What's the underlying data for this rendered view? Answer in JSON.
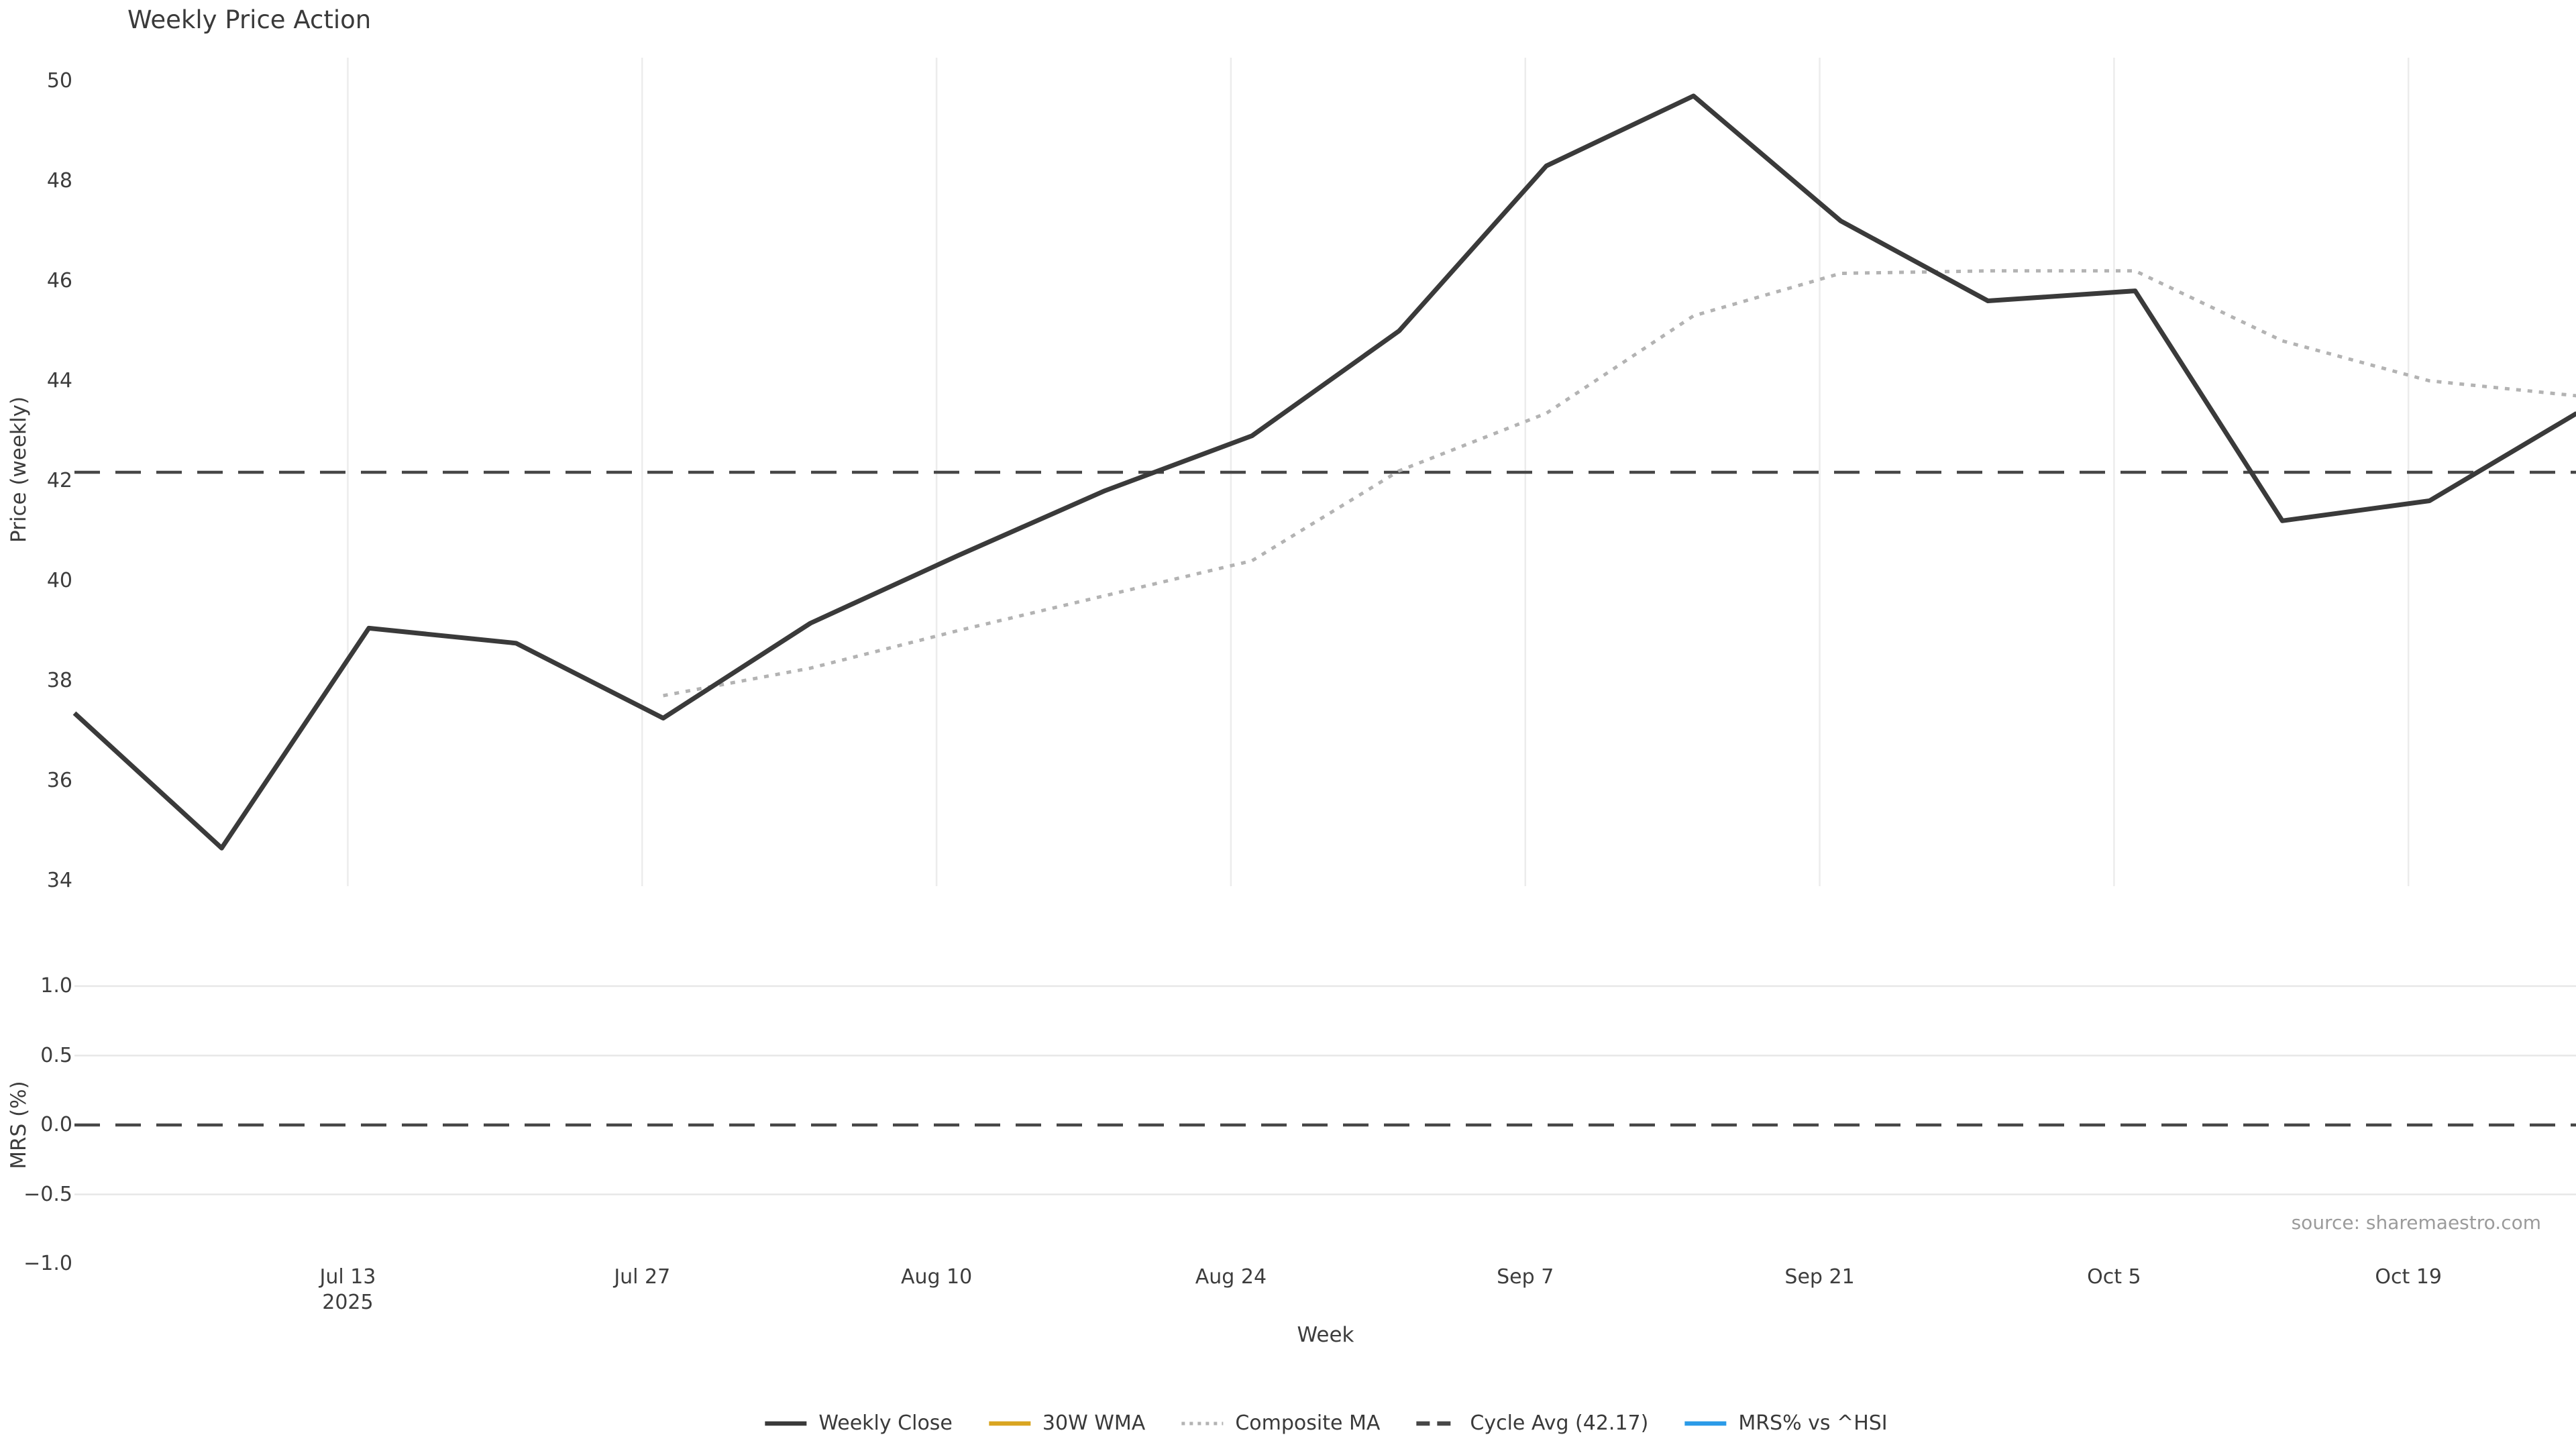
{
  "title": "Weekly Price Action",
  "source_note": "source: sharemaestro.com",
  "colors": {
    "weekly_close": "#3a3a3a",
    "wma_30w": "#d9a521",
    "composite_ma": "#b3b3b3",
    "cycle_avg": "#474747",
    "mrs_line": "#2b9be8",
    "grid": "#ececec",
    "text": "#3d3d3d",
    "source_text": "#9b9b9b"
  },
  "x_axis": {
    "label": "Week",
    "tick_labels": [
      "Jul 13",
      "Jul 27",
      "Aug 10",
      "Aug 24",
      "Sep 7",
      "Sep 21",
      "Oct 5",
      "Oct 19"
    ],
    "year_label": "2025",
    "tick_week_positions": [
      1.857,
      3.857,
      5.857,
      7.857,
      9.857,
      11.857,
      13.857,
      15.857
    ]
  },
  "price_panel": {
    "ylabel": "Price (weekly)",
    "yticks": [
      50,
      48,
      46,
      44,
      42,
      40,
      38,
      36,
      34
    ],
    "ylim": [
      33.9,
      50.5
    ],
    "cycle_avg_value": 42.17
  },
  "mrs_panel": {
    "ylabel": "MRS (%)",
    "yticks": [
      {
        "label": "1.0",
        "value": 1.0,
        "gridline": true
      },
      {
        "label": "0.5",
        "value": 0.5,
        "gridline": true
      },
      {
        "label": "0.0",
        "value": 0.0,
        "gridline": false
      },
      {
        "label": "−0.5",
        "value": -0.5,
        "gridline": true
      },
      {
        "label": "−1.0",
        "value": -1.0,
        "gridline": false
      }
    ],
    "ylim": [
      -1.08,
      1.08
    ],
    "zero_line_value": 0.0
  },
  "chart_data": [
    {
      "type": "line",
      "title": "Weekly Price Action",
      "xlabel": "Week",
      "ylabel": "Price (weekly)",
      "ylim": [
        33.9,
        50.5
      ],
      "x_week_index": [
        0,
        1,
        2,
        3,
        4,
        5,
        6,
        7,
        8,
        9,
        10,
        11,
        12,
        13,
        14,
        15,
        16,
        17
      ],
      "x_tick_labels": [
        "Jul 13",
        "Jul 27",
        "Aug 10",
        "Aug 24",
        "Sep 7",
        "Sep 21",
        "Oct 5",
        "Oct 19"
      ],
      "x_tick_positions_weeks": [
        1.857,
        3.857,
        5.857,
        7.857,
        9.857,
        11.857,
        13.857,
        15.857
      ],
      "grid": "vertical-only",
      "series": [
        {
          "name": "Weekly Close",
          "style": "solid",
          "values": [
            37.35,
            34.65,
            39.05,
            38.75,
            37.25,
            39.15,
            40.5,
            41.8,
            42.9,
            45.0,
            48.3,
            49.7,
            47.2,
            45.6,
            45.8,
            41.2,
            41.6,
            43.35
          ]
        },
        {
          "name": "Composite MA",
          "style": "dotted",
          "values": [
            null,
            null,
            null,
            null,
            37.7,
            38.25,
            39.0,
            39.7,
            40.4,
            42.2,
            43.35,
            45.3,
            46.15,
            46.2,
            46.2,
            44.8,
            44.0,
            43.7
          ]
        },
        {
          "name": "30W WMA",
          "style": "solid",
          "values": []
        },
        {
          "name": "Cycle Avg",
          "style": "dashed-horizontal",
          "value": 42.17
        }
      ]
    },
    {
      "type": "line",
      "ylabel": "MRS (%)",
      "ylim": [
        -1.08,
        1.08
      ],
      "yticks": [
        1.0,
        0.5,
        0.0,
        -0.5,
        -1.0
      ],
      "grid": "horizontal-only",
      "zero_line": 0.0,
      "series": [
        {
          "name": "MRS% vs ^HSI",
          "style": "solid",
          "values": []
        }
      ]
    }
  ],
  "legend": {
    "items": [
      {
        "label": "Weekly Close",
        "style": "solid",
        "color": "#3a3a3a"
      },
      {
        "label": "30W WMA",
        "style": "solid",
        "color": "#d9a521"
      },
      {
        "label": "Composite MA",
        "style": "dotted",
        "color": "#b3b3b3"
      },
      {
        "label": "Cycle Avg (42.17)",
        "style": "dashed",
        "color": "#474747"
      },
      {
        "label": "MRS% vs ^HSI",
        "style": "solid",
        "color": "#2b9be8"
      }
    ]
  }
}
